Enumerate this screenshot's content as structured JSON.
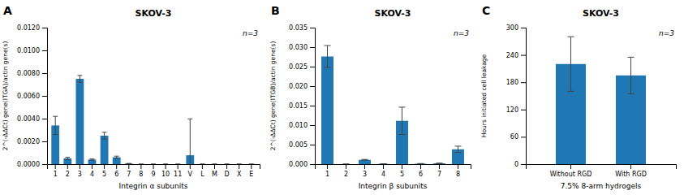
{
  "chart_data": [
    {
      "type": "bar",
      "title": "SKOV-3",
      "annotations": [
        "A",
        "n=3"
      ],
      "xlabel": "Integrin α subunits",
      "ylabel": "2^(-ΔΔCt) gene(ITGA)/actin gene(s)",
      "categories": [
        "1",
        "2",
        "3",
        "4",
        "5",
        "6",
        "7",
        "8",
        "9",
        "10",
        "11",
        "V",
        "L",
        "M",
        "D",
        "X",
        "E"
      ],
      "values": [
        0.0034,
        0.0005,
        0.0075,
        0.0004,
        0.0025,
        0.0006,
        5e-05,
        0.0,
        0.0,
        0.0,
        0.0,
        0.00078,
        0.0,
        0.0,
        0.0,
        0.0,
        0.0
      ],
      "errors": [
        0.0008,
        0.0001,
        0.0003,
        5e-05,
        0.0003,
        0.0001,
        1e-05,
        0.0,
        0.0,
        0.0,
        0.0,
        0.0032,
        0.0,
        0.0,
        0.0,
        0.0,
        0.0
      ],
      "ylim": [
        0,
        0.012
      ],
      "yticks": [
        {
          "value": 0.0,
          "label": "0.0000"
        },
        {
          "value": 0.002,
          "label": "0.0020"
        },
        {
          "value": 0.004,
          "label": "0.0040"
        },
        {
          "value": 0.006,
          "label": "0.0060"
        },
        {
          "value": 0.008,
          "label": "0.0080"
        },
        {
          "value": 0.01,
          "label": "0.0100"
        },
        {
          "value": 0.012,
          "label": "0.0120"
        }
      ],
      "grid": false
    },
    {
      "type": "bar",
      "title": "SKOV-3",
      "annotations": [
        "B",
        "n=3"
      ],
      "xlabel": "Integrin β subunits",
      "ylabel": "2^(-ΔΔCt) gene(ITGB)/actin gene(s)",
      "categories": [
        "1",
        "2",
        "3",
        "4",
        "5",
        "6",
        "7",
        "8"
      ],
      "values": [
        0.0276,
        0.0,
        0.0011,
        5e-05,
        0.0111,
        0.0001,
        0.0002,
        0.0038
      ],
      "errors": [
        0.0028,
        0.0,
        0.0001,
        1e-05,
        0.0035,
        5e-05,
        5e-05,
        0.0008
      ],
      "ylim": [
        0,
        0.035
      ],
      "yticks": [
        {
          "value": 0.0,
          "label": "0.000"
        },
        {
          "value": 0.005,
          "label": "0.005"
        },
        {
          "value": 0.01,
          "label": "0.010"
        },
        {
          "value": 0.015,
          "label": "0.015"
        },
        {
          "value": 0.02,
          "label": "0.020"
        },
        {
          "value": 0.025,
          "label": "0.025"
        },
        {
          "value": 0.03,
          "label": "0.030"
        },
        {
          "value": 0.035,
          "label": "0.035"
        }
      ],
      "grid": false
    },
    {
      "type": "bar",
      "title": "SKOV-3",
      "annotations": [
        "C",
        "n=3"
      ],
      "xlabel": "7.5% 8-arm hydrogels",
      "ylabel": "Hours initiated cell leakage",
      "categories": [
        "Without RGD",
        "With RGD"
      ],
      "values": [
        220,
        195
      ],
      "errors": [
        60,
        40
      ],
      "ylim": [
        0,
        300
      ],
      "yticks": [
        0,
        60,
        120,
        180,
        240,
        300
      ],
      "grid": false
    }
  ]
}
